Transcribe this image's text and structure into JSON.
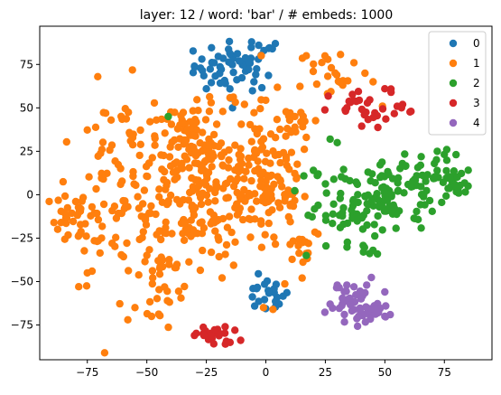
{
  "chart_data": {
    "type": "scatter",
    "title": "layer: 12 / word: 'bar' / # embeds: 1000",
    "xlabel": "",
    "ylabel": "",
    "xlim": [
      -95,
      95
    ],
    "ylim": [
      -95,
      97
    ],
    "xticks": [
      -75,
      -50,
      -25,
      0,
      25,
      50,
      75
    ],
    "yticks": [
      -75,
      -50,
      -25,
      0,
      25,
      50,
      75
    ],
    "grid": false,
    "legend_position": "top-right",
    "series": [
      {
        "name": "0",
        "color": "#1f77b4",
        "clusters": [
          {
            "cx": -12,
            "cy": 74,
            "sx": 9,
            "sy": 7,
            "n": 56
          },
          {
            "cx": 0,
            "cy": -58,
            "sx": 5,
            "sy": 5,
            "n": 22
          }
        ],
        "points": [
          [
            -30,
            74
          ],
          [
            -25,
            61
          ],
          [
            -14,
            50
          ],
          [
            -6,
            88
          ],
          [
            -3,
            86
          ],
          [
            4,
            87
          ],
          [
            -5,
            65
          ],
          [
            -17,
            64
          ]
        ]
      },
      {
        "name": "1",
        "color": "#ff7f0e",
        "clusters": [
          {
            "cx": -28,
            "cy": 5,
            "sx": 16,
            "sy": 22,
            "n": 260
          },
          {
            "cx": 2,
            "cy": 8,
            "sx": 9,
            "sy": 22,
            "n": 110
          },
          {
            "cx": -78,
            "cy": -12,
            "sx": 6,
            "sy": 8,
            "n": 34
          },
          {
            "cx": -62,
            "cy": 5,
            "sx": 10,
            "sy": 28,
            "n": 70
          },
          {
            "cx": -44,
            "cy": -45,
            "sx": 5,
            "sy": 14,
            "n": 28
          },
          {
            "cx": -32,
            "cy": 32,
            "sx": 7,
            "sy": 10,
            "n": 40
          },
          {
            "cx": 28,
            "cy": 70,
            "sx": 8,
            "sy": 8,
            "n": 22
          },
          {
            "cx": 13,
            "cy": 44,
            "sx": 5,
            "sy": 4,
            "n": 12
          },
          {
            "cx": 16,
            "cy": -28,
            "sx": 4,
            "sy": 7,
            "n": 14
          }
        ],
        "points": [
          [
            -89,
            -16
          ],
          [
            -86,
            -16
          ],
          [
            -73,
            -44
          ],
          [
            -75,
            -45
          ],
          [
            -58,
            -72
          ],
          [
            -55,
            -65
          ],
          [
            -65,
            43
          ],
          [
            -46,
            43
          ],
          [
            17,
            80
          ],
          [
            37,
            76
          ],
          [
            49,
            51
          ],
          [
            -23,
            53
          ],
          [
            -9,
            52
          ],
          [
            17,
            33
          ],
          [
            -48,
            -70
          ],
          [
            -1,
            -65
          ],
          [
            3,
            -66
          ]
        ]
      },
      {
        "name": "2",
        "color": "#2ca02c",
        "clusters": [
          {
            "cx": 50,
            "cy": 0,
            "sx": 13,
            "sy": 10,
            "n": 95
          },
          {
            "cx": 35,
            "cy": -12,
            "sx": 8,
            "sy": 12,
            "n": 45
          },
          {
            "cx": 70,
            "cy": 12,
            "sx": 7,
            "sy": 8,
            "n": 30
          },
          {
            "cx": 78,
            "cy": 6,
            "sx": 5,
            "sy": 4,
            "n": 15
          }
        ],
        "points": [
          [
            27,
            32
          ],
          [
            30,
            30
          ],
          [
            22,
            12
          ],
          [
            20,
            14
          ],
          [
            -41,
            45
          ],
          [
            17,
            -35
          ],
          [
            45,
            -32
          ],
          [
            41,
            -33
          ],
          [
            72,
            25
          ],
          [
            76,
            26
          ],
          [
            65,
            17
          ],
          [
            85,
            5
          ]
        ]
      },
      {
        "name": "3",
        "color": "#d62728",
        "clusters": [
          {
            "cx": 45,
            "cy": 48,
            "sx": 9,
            "sy": 6,
            "n": 30
          },
          {
            "cx": -22,
            "cy": -81,
            "sx": 5,
            "sy": 3,
            "n": 20
          }
        ],
        "points": [
          [
            57,
            50
          ],
          [
            61,
            48
          ],
          [
            50,
            61
          ],
          [
            34,
            50
          ],
          [
            -26,
            -81
          ],
          [
            -17,
            -86
          ],
          [
            -15,
            -85
          ],
          [
            -13,
            -78
          ],
          [
            -30,
            -81
          ]
        ]
      },
      {
        "name": "4",
        "color": "#9467bd",
        "clusters": [
          {
            "cx": 36,
            "cy": -60,
            "sx": 5,
            "sy": 6,
            "n": 28
          },
          {
            "cx": 45,
            "cy": -67,
            "sx": 5,
            "sy": 3,
            "n": 20
          }
        ],
        "points": [
          [
            27,
            -63
          ],
          [
            30,
            -52
          ],
          [
            34,
            -52
          ],
          [
            37,
            -53
          ],
          [
            40,
            -60
          ],
          [
            46,
            -66
          ],
          [
            50,
            -56
          ],
          [
            50,
            -70
          ],
          [
            39,
            -70
          ],
          [
            33,
            -69
          ]
        ]
      }
    ]
  }
}
